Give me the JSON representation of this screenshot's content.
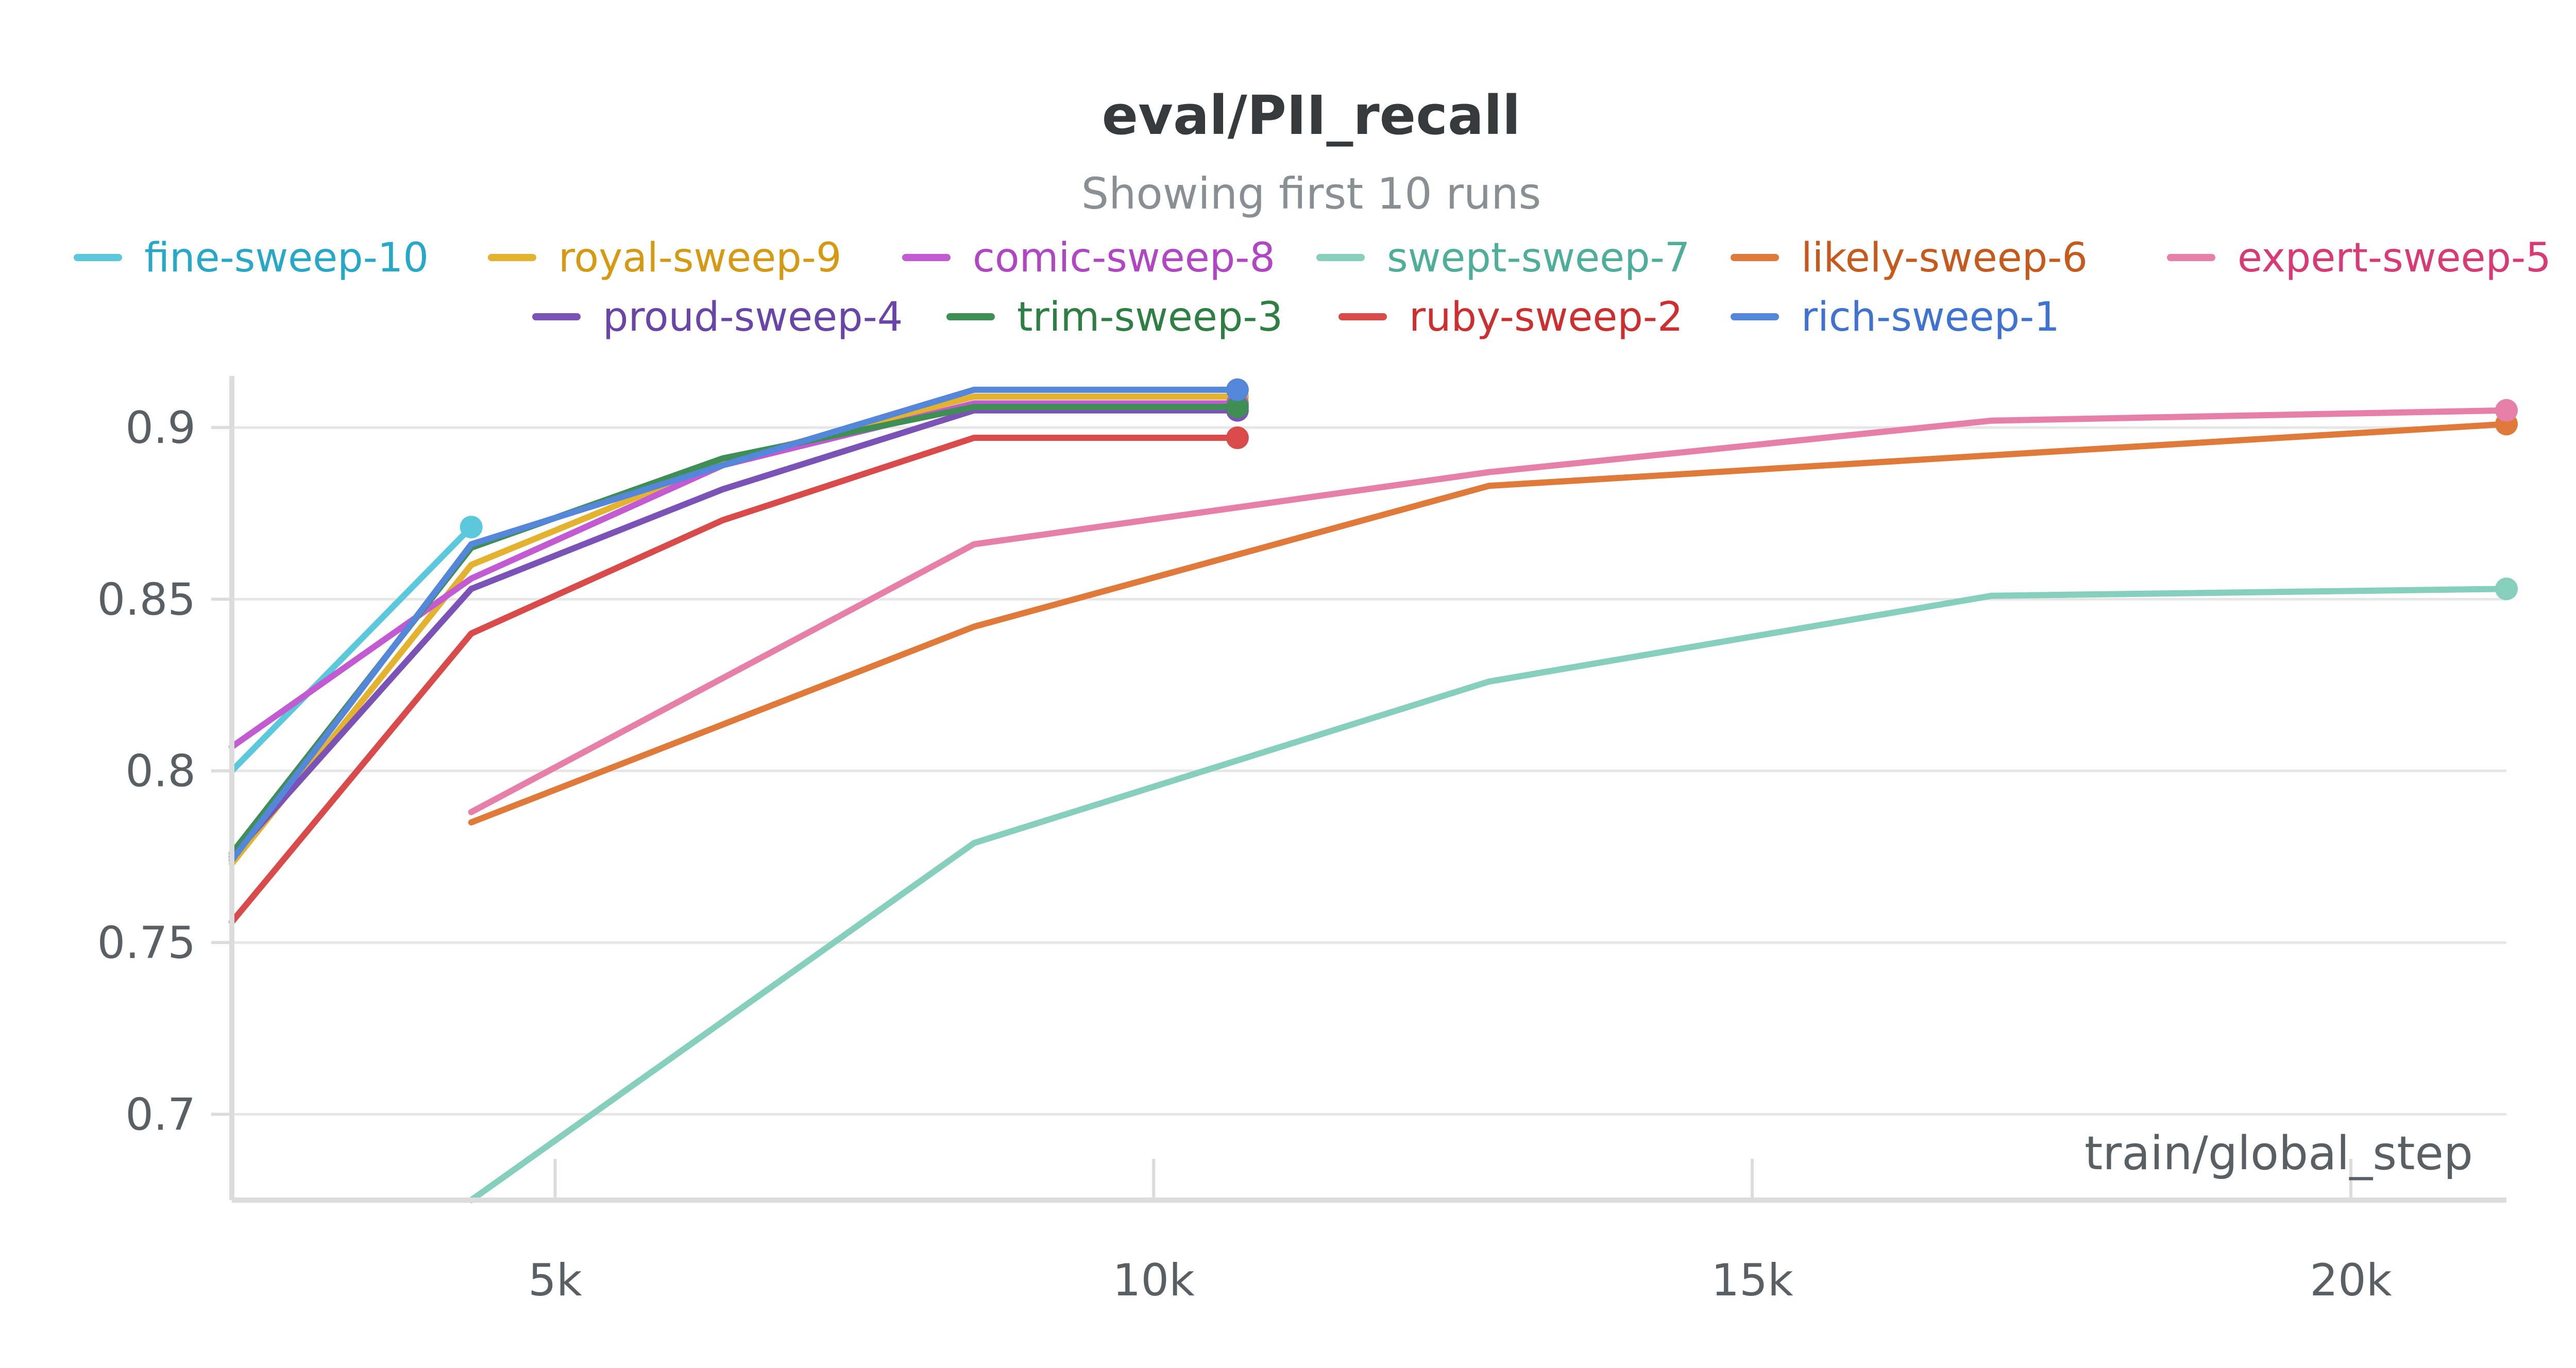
{
  "chart_data": {
    "type": "line",
    "title": "eval/PII_recall",
    "subtitle": "Showing first 10 runs",
    "xlabel": "train/global_step",
    "ylabel": "",
    "xlim": [
      2300,
      21300
    ],
    "ylim": [
      0.675,
      0.915
    ],
    "x_ticks": [
      5000,
      10000,
      15000,
      20000
    ],
    "x_tick_labels": [
      "5k",
      "10k",
      "15k",
      "20k"
    ],
    "y_ticks": [
      0.7,
      0.75,
      0.8,
      0.85,
      0.9
    ],
    "y_tick_labels": [
      "0.7",
      "0.75",
      "0.8",
      "0.85",
      "0.9"
    ],
    "grid": true,
    "legend": "top",
    "series": [
      {
        "name": "fine-sweep-10",
        "color": "#5bc8dc",
        "text_color": "#27a8c7",
        "x": [
          2300,
          4300
        ],
        "y": [
          0.8,
          0.871
        ]
      },
      {
        "name": "royal-sweep-9",
        "color": "#e3b22f",
        "text_color": "#d59a12",
        "x": [
          2300,
          4300,
          6400,
          8500,
          10700
        ],
        "y": [
          0.773,
          0.86,
          0.89,
          0.909,
          0.909
        ]
      },
      {
        "name": "comic-sweep-8",
        "color": "#c25ad1",
        "text_color": "#b146c4",
        "x": [
          2300,
          4300,
          6400,
          8500,
          10700
        ],
        "y": [
          0.807,
          0.856,
          0.889,
          0.907,
          0.907
        ]
      },
      {
        "name": "swept-sweep-7",
        "color": "#86cfbd",
        "text_color": "#4fae99",
        "x": [
          4300,
          8500,
          12800,
          17000,
          21300
        ],
        "y": [
          0.675,
          0.779,
          0.826,
          0.851,
          0.853
        ]
      },
      {
        "name": "likely-sweep-6",
        "color": "#e07a3a",
        "text_color": "#c55a1c",
        "x": [
          4300,
          8500,
          12800,
          21300
        ],
        "y": [
          0.785,
          0.842,
          0.883,
          0.901
        ]
      },
      {
        "name": "expert-sweep-5",
        "color": "#e680a8",
        "text_color": "#d83a76",
        "x": [
          4300,
          8500,
          12800,
          17000,
          21300
        ],
        "y": [
          0.788,
          0.866,
          0.887,
          0.902,
          0.905
        ]
      },
      {
        "name": "proud-sweep-4",
        "color": "#7b52b5",
        "text_color": "#6a45a8",
        "x": [
          2300,
          4300,
          6400,
          8500,
          10700
        ],
        "y": [
          0.775,
          0.853,
          0.882,
          0.905,
          0.905
        ]
      },
      {
        "name": "trim-sweep-3",
        "color": "#3f8f54",
        "text_color": "#2f7f45",
        "x": [
          2300,
          4300,
          6400,
          8500,
          10700
        ],
        "y": [
          0.776,
          0.865,
          0.891,
          0.906,
          0.906
        ]
      },
      {
        "name": "ruby-sweep-2",
        "color": "#d94a4a",
        "text_color": "#cc2f2f",
        "x": [
          2300,
          4300,
          6400,
          8500,
          10700
        ],
        "y": [
          0.756,
          0.84,
          0.873,
          0.897,
          0.897
        ]
      },
      {
        "name": "rich-sweep-1",
        "color": "#5486d9",
        "text_color": "#3f73cf",
        "x": [
          2300,
          4300,
          6400,
          8500,
          10700
        ],
        "y": [
          0.774,
          0.866,
          0.889,
          0.911,
          0.911
        ]
      }
    ]
  }
}
